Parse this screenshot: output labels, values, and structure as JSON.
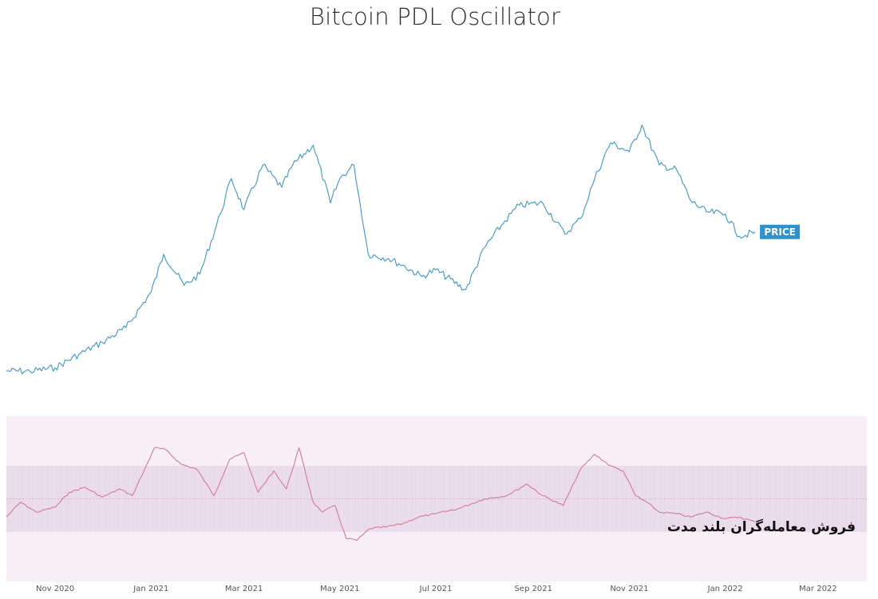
{
  "chart_data": {
    "title": "Bitcoin PDL Oscillator",
    "type": "line",
    "x_range": [
      "2020-10-01",
      "2022-04-01"
    ],
    "series": [
      {
        "name": "PRICE",
        "color": "#3f97c4",
        "x": [
          "2020-10-01",
          "2020-10-16",
          "2020-11-01",
          "2020-11-16",
          "2020-12-01",
          "2020-12-16",
          "2021-01-01",
          "2021-01-09",
          "2021-01-22",
          "2021-02-01",
          "2021-02-14",
          "2021-02-21",
          "2021-03-01",
          "2021-03-13",
          "2021-03-25",
          "2021-04-01",
          "2021-04-14",
          "2021-04-25",
          "2021-05-01",
          "2021-05-10",
          "2021-05-19",
          "2021-06-01",
          "2021-06-10",
          "2021-06-22",
          "2021-07-01",
          "2021-07-20",
          "2021-08-01",
          "2021-08-14",
          "2021-08-23",
          "2021-09-07",
          "2021-09-21",
          "2021-10-01",
          "2021-10-10",
          "2021-10-20",
          "2021-11-01",
          "2021-11-09",
          "2021-11-20",
          "2021-12-01",
          "2021-12-10",
          "2021-12-20",
          "2022-01-01",
          "2022-01-10",
          "2022-01-20"
        ],
        "values": [
          11800,
          11700,
          12500,
          15500,
          18200,
          21500,
          29500,
          38000,
          31000,
          33500,
          47000,
          55000,
          48000,
          58000,
          53000,
          58000,
          62500,
          49500,
          55000,
          58000,
          38000,
          37000,
          35500,
          33000,
          34500,
          30000,
          39500,
          45500,
          49000,
          49500,
          42500,
          46000,
          55000,
          63000,
          61000,
          67000,
          58000,
          57000,
          50000,
          47500,
          47000,
          42000,
          43000
        ]
      },
      {
        "name": "PDL Oscillator",
        "color": "#d27b96",
        "x": [
          "2020-10-01",
          "2020-10-10",
          "2020-10-20",
          "2020-11-01",
          "2020-11-10",
          "2020-11-20",
          "2020-12-01",
          "2020-12-12",
          "2020-12-20",
          "2020-12-28",
          "2021-01-03",
          "2021-01-10",
          "2021-01-20",
          "2021-01-30",
          "2021-02-10",
          "2021-02-20",
          "2021-03-01",
          "2021-03-10",
          "2021-03-20",
          "2021-03-28",
          "2021-04-05",
          "2021-04-14",
          "2021-04-20",
          "2021-04-28",
          "2021-05-05",
          "2021-05-12",
          "2021-05-20",
          "2021-05-30",
          "2021-06-10",
          "2021-06-20",
          "2021-07-01",
          "2021-07-15",
          "2021-08-01",
          "2021-08-15",
          "2021-08-28",
          "2021-09-07",
          "2021-09-20",
          "2021-10-01",
          "2021-10-10",
          "2021-10-20",
          "2021-10-28",
          "2021-11-05",
          "2021-11-12",
          "2021-11-20",
          "2021-12-01",
          "2021-12-10",
          "2021-12-20",
          "2022-01-01",
          "2022-01-10",
          "2022-01-20"
        ],
        "values": [
          -0.55,
          -0.1,
          -0.4,
          -0.25,
          0.2,
          0.35,
          0.05,
          0.3,
          0.1,
          0.9,
          1.55,
          1.5,
          1.05,
          0.9,
          0.1,
          1.2,
          1.4,
          0.2,
          0.85,
          0.3,
          1.55,
          -0.1,
          -0.4,
          -0.2,
          -1.2,
          -1.25,
          -0.9,
          -0.85,
          -0.75,
          -0.55,
          -0.45,
          -0.3,
          0.0,
          0.1,
          0.45,
          0.1,
          -0.2,
          0.9,
          1.35,
          1.0,
          0.85,
          0.1,
          -0.1,
          -0.4,
          -0.45,
          -0.55,
          -0.4,
          -0.6,
          -0.55,
          -0.7
        ]
      }
    ],
    "price_label": "PRICE",
    "oscillator": {
      "ylim": [
        -2.5,
        2.5
      ],
      "inner_band": [
        -1,
        1
      ],
      "zero_line": 0
    },
    "x_tick_labels": [
      {
        "label": "Nov 2020",
        "date": "2020-11-01"
      },
      {
        "label": "Jan 2021",
        "date": "2021-01-01"
      },
      {
        "label": "Mar 2021",
        "date": "2021-03-01"
      },
      {
        "label": "May 2021",
        "date": "2021-05-01"
      },
      {
        "label": "Jul 2021",
        "date": "2021-07-01"
      },
      {
        "label": "Sep 2021",
        "date": "2021-09-01"
      },
      {
        "label": "Nov 2021",
        "date": "2021-11-01"
      },
      {
        "label": "Jan 2022",
        "date": "2022-01-01"
      },
      {
        "label": "Mar 2022",
        "date": "2022-03-01"
      }
    ],
    "annotation": "فروش معامله‌گران بلند مدت",
    "colors": {
      "price_line": "#3f97c4",
      "oscillator_line": "#d27b96",
      "outer_band": "#f8eff6",
      "inner_band": "#eadbea",
      "zero_line": "#c9a3bd",
      "price_tag": "#2f92cc"
    }
  }
}
